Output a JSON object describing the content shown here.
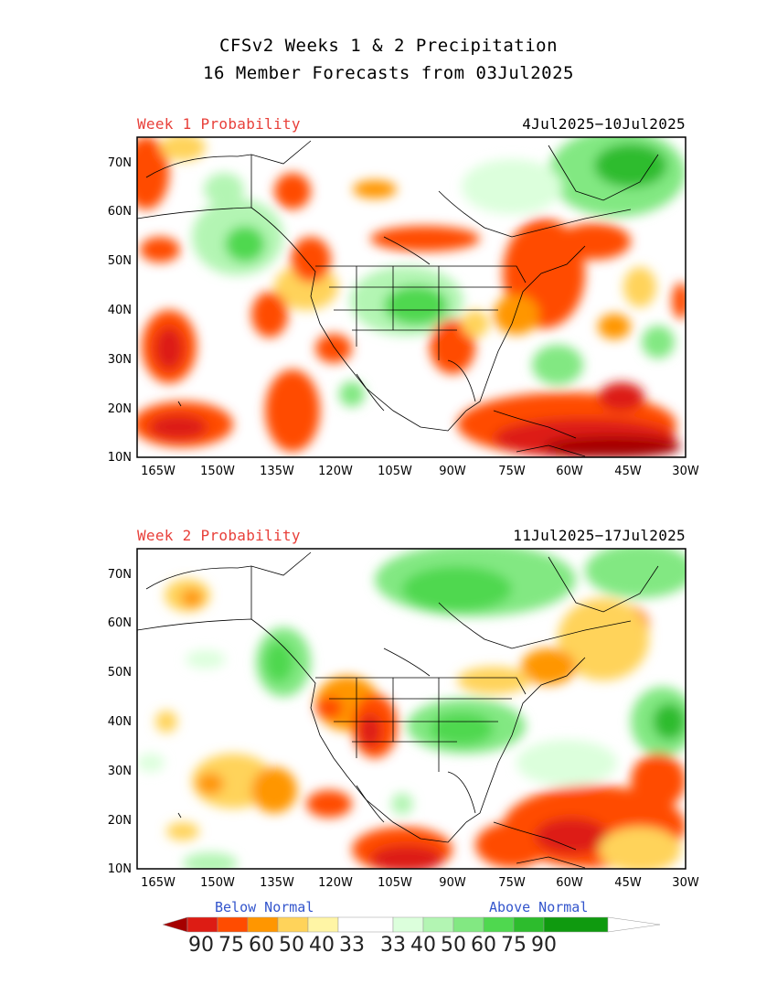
{
  "title": {
    "line1": "CFSv2 Weeks 1 & 2 Precipitation",
    "line2": "16 Member Forecasts from 03Jul2025"
  },
  "panels": [
    {
      "label": "Week 1 Probability",
      "dates": "4Jul2025−10Jul2025"
    },
    {
      "label": "Week 2 Probability",
      "dates": "11Jul2025−17Jul2025"
    }
  ],
  "axes": {
    "lat_labels": [
      "70N",
      "60N",
      "50N",
      "40N",
      "30N",
      "20N",
      "10N"
    ],
    "lon_labels": [
      "165W",
      "150W",
      "135W",
      "120W",
      "105W",
      "90W",
      "75W",
      "60W",
      "45W",
      "30W"
    ]
  },
  "legend": {
    "below_label": "Below Normal",
    "above_label": "Above Normal",
    "values": [
      "90",
      "75",
      "60",
      "50",
      "40",
      "33",
      "33",
      "40",
      "50",
      "60",
      "75",
      "90"
    ],
    "colors": [
      "#a50000",
      "#dd1c14",
      "#ff4c00",
      "#ff9600",
      "#ffd35a",
      "#fff5a5",
      "#ffffff",
      "#dcffdc",
      "#b3f5b3",
      "#82e882",
      "#4fd84f",
      "#2dbc2d",
      "#0f9a0f"
    ]
  }
}
